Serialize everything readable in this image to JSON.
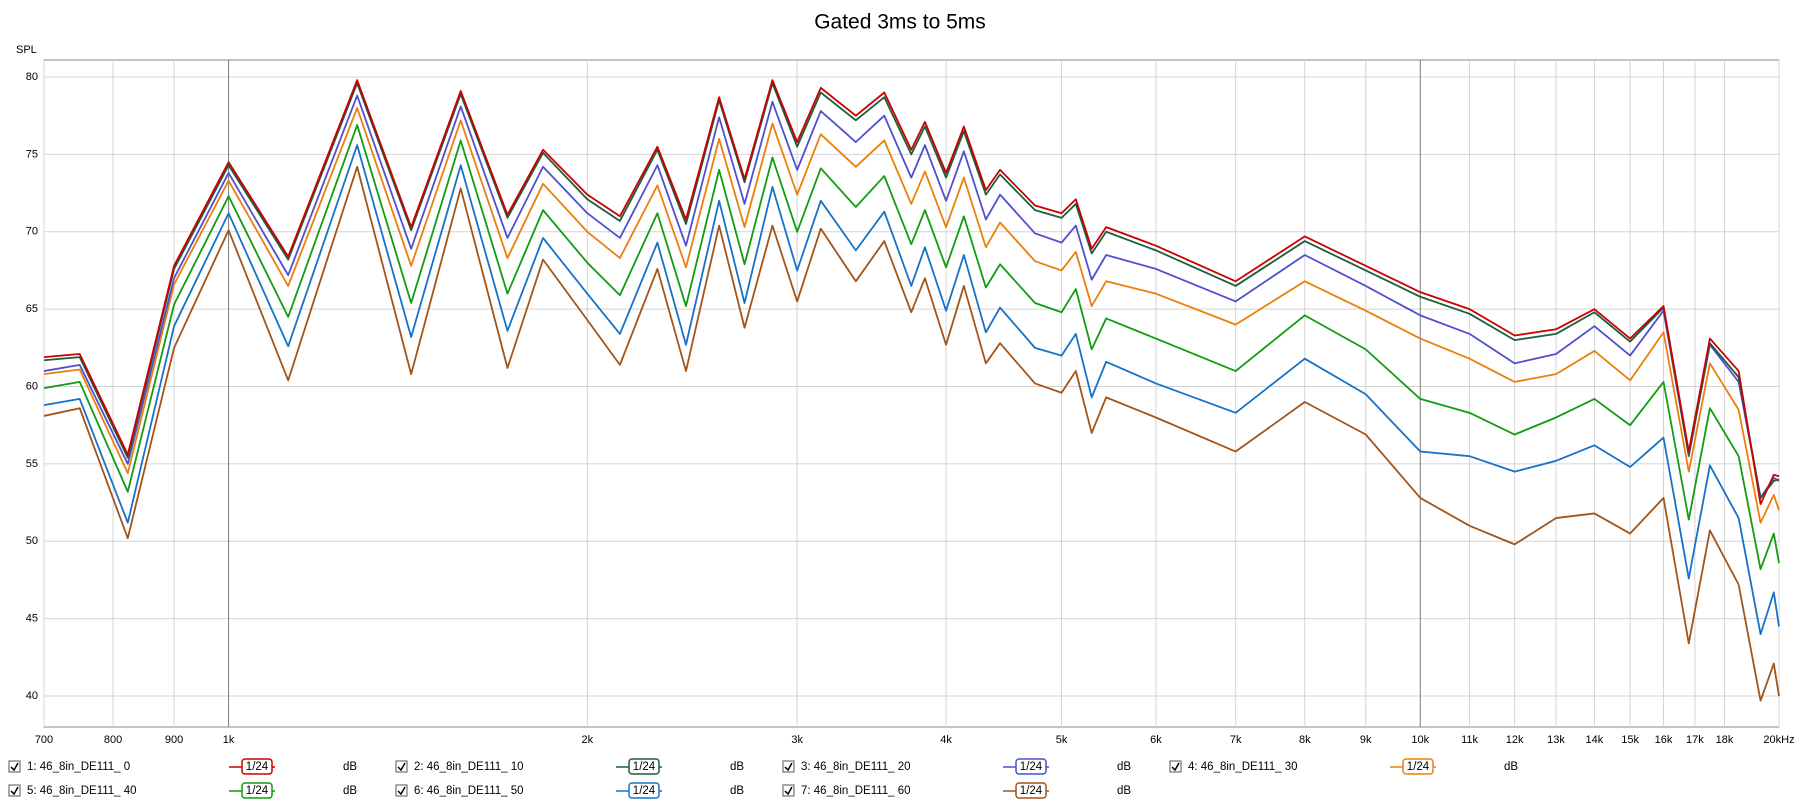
{
  "chart_data": {
    "type": "line",
    "title": "Gated 3ms to 5ms",
    "y_label": "SPL",
    "log_scale_x": true,
    "grid": true,
    "x": [
      700,
      750,
      823,
      900,
      1000,
      1122,
      1282,
      1423,
      1566,
      1714,
      1836,
      2000,
      2130,
      2290,
      2420,
      2580,
      2710,
      2860,
      3000,
      3140,
      3360,
      3550,
      3740,
      3840,
      4000,
      4140,
      4320,
      4440,
      4750,
      5000,
      5140,
      5300,
      5450,
      6000,
      7000,
      8000,
      9000,
      10000,
      11000,
      12000,
      13000,
      14000,
      15000,
      16000,
      16800,
      17500,
      18500,
      19300,
      19800,
      20000
    ],
    "xlim": [
      700,
      20000
    ],
    "xticks": [
      700,
      800,
      900,
      {
        "value": 1000,
        "label": "1k"
      },
      {
        "value": 2000,
        "label": "2k"
      },
      {
        "value": 3000,
        "label": "3k"
      },
      {
        "value": 4000,
        "label": "4k"
      },
      {
        "value": 5000,
        "label": "5k"
      },
      {
        "value": 6000,
        "label": "6k"
      },
      {
        "value": 7000,
        "label": "7k"
      },
      {
        "value": 8000,
        "label": "8k"
      },
      {
        "value": 9000,
        "label": "9k"
      },
      {
        "value": 10000,
        "label": "10k"
      },
      {
        "value": 11000,
        "label": "11k"
      },
      {
        "value": 12000,
        "label": "12k"
      },
      {
        "value": 13000,
        "label": "13k"
      },
      {
        "value": 14000,
        "label": "14k"
      },
      {
        "value": 15000,
        "label": "15k"
      },
      {
        "value": 16000,
        "label": "16k"
      },
      {
        "value": 17000,
        "label": "17k"
      },
      {
        "value": 18000,
        "label": "18k"
      },
      {
        "value": 20000,
        "label": "20kHz"
      }
    ],
    "ylim": [
      38,
      81.1
    ],
    "yticks": [
      40,
      45,
      50,
      55,
      60,
      65,
      70,
      75,
      80
    ],
    "series": [
      {
        "name": "1: 46_8in_DE111_ 0",
        "color": "#cc0000",
        "smoothing": "1/24",
        "unit": "dB",
        "values": [
          61.9,
          62.1,
          55.6,
          67.8,
          74.5,
          68.4,
          79.8,
          70.3,
          79.1,
          71.1,
          75.3,
          72.4,
          71.0,
          75.5,
          70.8,
          78.7,
          73.4,
          79.8,
          75.8,
          79.3,
          77.5,
          79.0,
          75.3,
          77.1,
          73.8,
          76.8,
          72.7,
          74.0,
          71.7,
          71.2,
          72.1,
          68.9,
          70.3,
          69.1,
          66.8,
          69.7,
          67.8,
          66.1,
          65.0,
          63.3,
          63.7,
          65.0,
          63.1,
          65.2,
          55.8,
          63.1,
          61.0,
          52.4,
          54.3,
          54.2
        ]
      },
      {
        "name": "2: 46_8in_DE111_ 10",
        "color": "#1d5e3c",
        "smoothing": "1/24",
        "unit": "dB",
        "values": [
          61.7,
          61.9,
          55.4,
          67.6,
          74.3,
          68.2,
          79.6,
          70.1,
          78.9,
          70.9,
          75.1,
          72.1,
          70.7,
          75.3,
          70.5,
          78.5,
          73.2,
          79.6,
          75.5,
          79.0,
          77.2,
          78.7,
          75.0,
          76.8,
          73.5,
          76.5,
          72.4,
          73.7,
          71.4,
          70.9,
          71.8,
          68.6,
          70.0,
          68.8,
          66.5,
          69.4,
          67.5,
          65.8,
          64.7,
          63.0,
          63.4,
          64.8,
          62.9,
          65.1,
          55.6,
          62.8,
          60.6,
          52.8,
          53.9,
          54.0
        ]
      },
      {
        "name": "3: 46_8in_DE111_ 20",
        "color": "#4f4fd0",
        "smoothing": "1/24",
        "unit": "dB",
        "values": [
          61.0,
          61.4,
          55.0,
          67.0,
          73.8,
          67.2,
          78.8,
          68.9,
          78.1,
          69.6,
          74.2,
          71.2,
          69.6,
          74.3,
          69.1,
          77.4,
          71.8,
          78.4,
          74.0,
          77.8,
          75.8,
          77.5,
          73.5,
          75.6,
          72.0,
          75.2,
          70.8,
          72.4,
          69.9,
          69.3,
          70.4,
          66.9,
          68.5,
          67.6,
          65.5,
          68.5,
          66.5,
          64.6,
          63.4,
          61.5,
          62.1,
          63.9,
          62.0,
          64.9,
          55.5,
          62.7,
          60.3,
          52.8,
          54.1,
          53.9
        ]
      },
      {
        "name": "4: 46_8in_DE111_ 30",
        "color": "#ec7f0a",
        "smoothing": "1/24",
        "unit": "dB",
        "values": [
          60.8,
          61.1,
          54.4,
          66.6,
          73.3,
          66.5,
          78.0,
          67.8,
          77.2,
          68.3,
          73.1,
          70.0,
          68.3,
          73.0,
          67.7,
          76.0,
          70.3,
          77.0,
          72.4,
          76.3,
          74.2,
          75.9,
          71.8,
          73.9,
          70.3,
          73.5,
          69.0,
          70.6,
          68.1,
          67.5,
          68.7,
          65.2,
          66.8,
          66.0,
          64.0,
          66.8,
          64.9,
          63.1,
          61.8,
          60.3,
          60.8,
          62.3,
          60.4,
          63.5,
          54.5,
          61.5,
          58.5,
          51.2,
          53.0,
          52.0
        ]
      },
      {
        "name": "5: 46_8in_DE111_ 40",
        "color": "#119c11",
        "smoothing": "1/24",
        "unit": "dB",
        "values": [
          59.9,
          60.3,
          53.2,
          65.3,
          72.3,
          64.5,
          76.9,
          65.4,
          75.9,
          66.0,
          71.4,
          68.0,
          65.9,
          71.2,
          65.2,
          74.0,
          67.9,
          74.8,
          70.0,
          74.1,
          71.6,
          73.6,
          69.2,
          71.4,
          67.7,
          71.0,
          66.4,
          67.9,
          65.4,
          64.8,
          66.3,
          62.4,
          64.4,
          63.1,
          61.0,
          64.6,
          62.4,
          59.2,
          58.3,
          56.9,
          58.0,
          59.2,
          57.5,
          60.3,
          51.4,
          58.6,
          55.5,
          48.2,
          50.5,
          48.6
        ]
      },
      {
        "name": "6: 46_8in_DE111_ 50",
        "color": "#1672c8",
        "smoothing": "1/24",
        "unit": "dB",
        "values": [
          58.8,
          59.2,
          51.2,
          63.9,
          71.2,
          62.6,
          75.6,
          63.2,
          74.3,
          63.6,
          69.6,
          66.0,
          63.4,
          69.3,
          62.7,
          72.0,
          65.4,
          72.9,
          67.5,
          72.0,
          68.8,
          71.3,
          66.5,
          69.0,
          64.9,
          68.5,
          63.5,
          65.1,
          62.5,
          62.0,
          63.4,
          59.3,
          61.6,
          60.2,
          58.3,
          61.8,
          59.5,
          55.8,
          55.5,
          54.5,
          55.2,
          56.2,
          54.8,
          56.7,
          47.6,
          54.9,
          51.5,
          44.0,
          46.7,
          44.5
        ]
      },
      {
        "name": "7: 46_8in_DE111_ 60",
        "color": "#a35418",
        "smoothing": "1/24",
        "unit": "dB",
        "values": [
          58.1,
          58.6,
          50.2,
          62.5,
          70.1,
          60.4,
          74.2,
          60.8,
          72.8,
          61.2,
          68.2,
          64.3,
          61.4,
          67.6,
          61.0,
          70.4,
          63.8,
          70.4,
          65.5,
          70.2,
          66.8,
          69.4,
          64.8,
          67.0,
          62.7,
          66.5,
          61.5,
          62.8,
          60.2,
          59.6,
          61.0,
          57.0,
          59.3,
          58.0,
          55.8,
          59.0,
          56.9,
          52.8,
          51.0,
          49.8,
          51.5,
          51.8,
          50.5,
          52.8,
          43.4,
          50.7,
          47.2,
          39.7,
          42.1,
          40.0
        ]
      }
    ]
  }
}
